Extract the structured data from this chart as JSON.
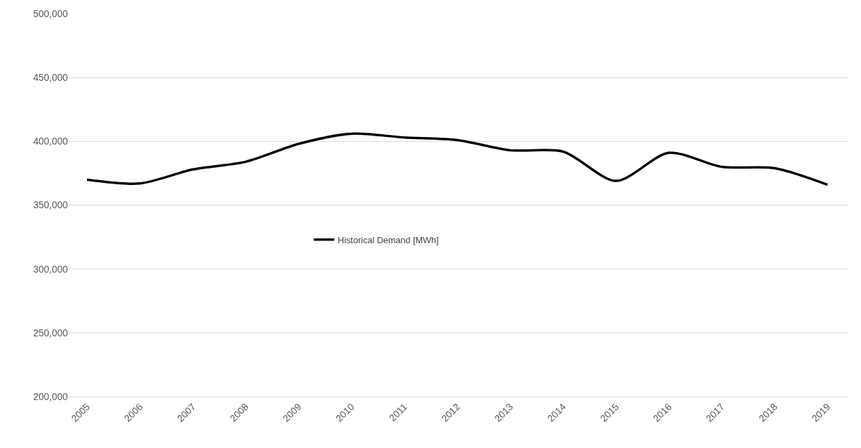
{
  "chart_data": {
    "type": "line",
    "categories": [
      "2005",
      "2006",
      "2007",
      "2008",
      "2009",
      "2010",
      "2011",
      "2012",
      "2013",
      "2014",
      "2015",
      "2016",
      "2017",
      "2018",
      "2019"
    ],
    "series": [
      {
        "name": "Historical Demand [MWh]",
        "color": "#000000",
        "values": [
          370000,
          367000,
          378000,
          384000,
          398000,
          406000,
          403000,
          401000,
          393000,
          392000,
          369000,
          391000,
          380000,
          379000,
          366000
        ]
      }
    ],
    "ylim": [
      200000,
      500000
    ],
    "yticks": [
      {
        "value": 200000,
        "label": "200,000"
      },
      {
        "value": 250000,
        "label": "250,000"
      },
      {
        "value": 300000,
        "label": "300,000"
      },
      {
        "value": 350000,
        "label": "350,000"
      },
      {
        "value": 400000,
        "label": "400,000"
      },
      {
        "value": 450000,
        "label": "450,000"
      },
      {
        "value": 500000,
        "label": "500,000"
      }
    ],
    "grid": "y",
    "legend": "center",
    "marker": "none",
    "line_style": "solid"
  }
}
